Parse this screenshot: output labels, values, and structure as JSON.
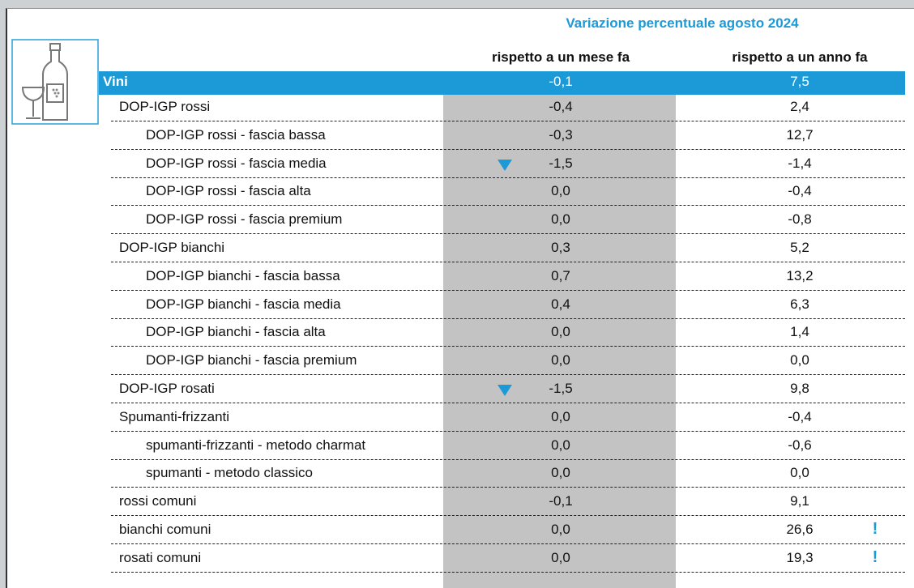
{
  "header": {
    "title": "Variazione percentuale agosto 2024",
    "columns": [
      "rispetto a un mese fa",
      "rispetto a un anno fa"
    ]
  },
  "table": {
    "rows": [
      [
        "Vini",
        "-0,1",
        "7,5"
      ],
      [
        "DOP-IGP rossi",
        "-0,4",
        "2,4"
      ],
      [
        "DOP-IGP rossi - fascia bassa",
        "-0,3",
        "12,7"
      ],
      [
        "DOP-IGP rossi - fascia media",
        "-1,5",
        "-1,4"
      ],
      [
        "DOP-IGP rossi - fascia alta",
        "0,0",
        "-0,4"
      ],
      [
        "DOP-IGP rossi - fascia premium",
        "0,0",
        "-0,8"
      ],
      [
        "DOP-IGP bianchi",
        "0,3",
        "5,2"
      ],
      [
        "DOP-IGP bianchi - fascia bassa",
        "0,7",
        "13,2"
      ],
      [
        "DOP-IGP bianchi - fascia media",
        "0,4",
        "6,3"
      ],
      [
        "DOP-IGP bianchi - fascia alta",
        "0,0",
        "1,4"
      ],
      [
        "DOP-IGP bianchi - fascia premium",
        "0,0",
        "0,0"
      ],
      [
        "DOP-IGP rosati",
        "-1,5",
        "9,8"
      ],
      [
        "Spumanti-frizzanti",
        "0,0",
        "-0,4"
      ],
      [
        "spumanti-frizzanti - metodo charmat",
        "0,0",
        "-0,6"
      ],
      [
        "spumanti - metodo classico",
        "0,0",
        "0,0"
      ],
      [
        "rossi comuni",
        "-0,1",
        "9,1"
      ],
      [
        "bianchi comuni",
        "0,0",
        "26,6",
        "!"
      ],
      [
        "rosati comuni",
        "0,0",
        "19,3",
        "!"
      ]
    ]
  }
}
